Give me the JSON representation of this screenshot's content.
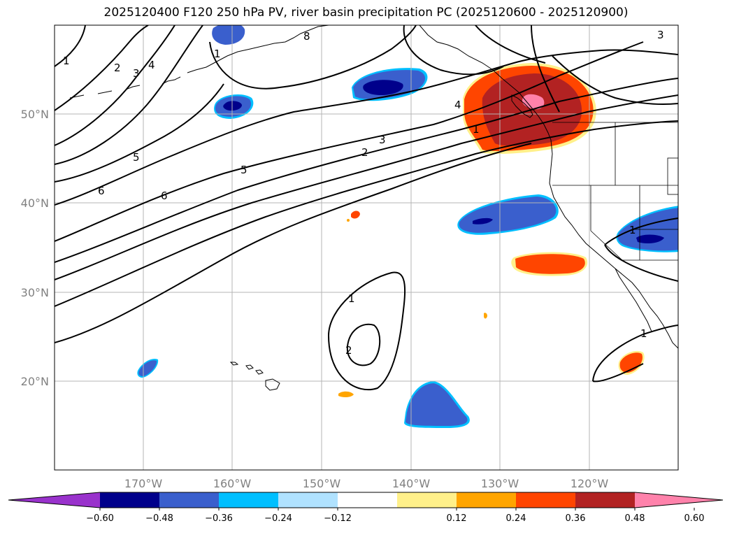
{
  "title": "2025120400 F120 250 hPa PV, river basin precipitation PC (2025120600 - 2025120900)",
  "lat_labels": [
    "50°N",
    "40°N",
    "30°N",
    "20°N"
  ],
  "lon_labels": [
    "170°W",
    "160°W",
    "150°W",
    "140°W",
    "130°W",
    "120°W"
  ],
  "colorbar": {
    "ticks": [
      "−0.60",
      "−0.48",
      "−0.36",
      "−0.24",
      "−0.12",
      "0.12",
      "0.24",
      "0.36",
      "0.48",
      "0.60"
    ],
    "colors": [
      "#9932cc",
      "#00008b",
      "#3a5fcd",
      "#00bfff",
      "#b0e2ff",
      "#ffffff",
      "#fff08a",
      "#ffa500",
      "#ff4500",
      "#b22222",
      "#ff82ab"
    ]
  },
  "contour_labels": [
    "1",
    "2",
    "3",
    "4",
    "5",
    "6",
    "1",
    "4",
    "1",
    "3",
    "2",
    "5",
    "6",
    "1",
    "2",
    "1",
    "1",
    "3",
    "8"
  ]
}
